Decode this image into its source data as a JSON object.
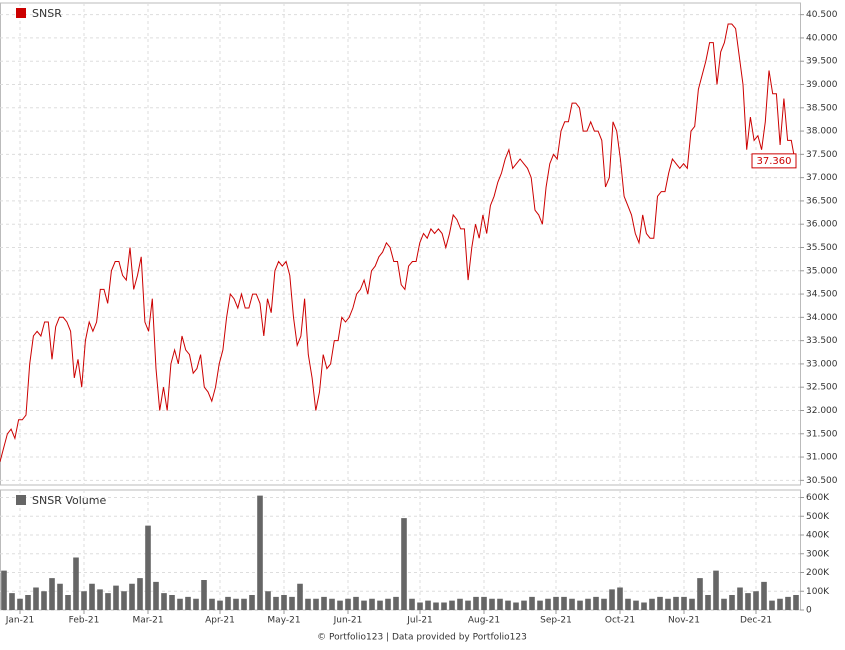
{
  "chart_data": [
    {
      "type": "line",
      "legend": "SNSR",
      "color": "#cc0000",
      "grid": true,
      "last_value_label": "37.360",
      "values": [
        30.9,
        31.2,
        31.5,
        31.6,
        31.4,
        31.8,
        31.8,
        31.9,
        33.0,
        33.6,
        33.7,
        33.6,
        33.9,
        33.9,
        33.1,
        33.8,
        34.0,
        34.0,
        33.9,
        33.7,
        32.7,
        33.1,
        32.5,
        33.5,
        33.9,
        33.7,
        33.9,
        34.6,
        34.6,
        34.3,
        35.0,
        35.2,
        35.2,
        34.9,
        34.8,
        35.5,
        34.6,
        34.9,
        35.3,
        33.9,
        33.7,
        34.4,
        32.9,
        32.0,
        32.5,
        32.0,
        33.0,
        33.3,
        33.0,
        33.6,
        33.3,
        33.2,
        32.8,
        32.9,
        33.2,
        32.5,
        32.4,
        32.2,
        32.5,
        33.0,
        33.3,
        34.0,
        34.5,
        34.4,
        34.2,
        34.5,
        34.2,
        34.2,
        34.5,
        34.5,
        34.3,
        33.6,
        34.4,
        34.1,
        35.0,
        35.2,
        35.1,
        35.2,
        34.9,
        34.0,
        33.4,
        33.6,
        34.4,
        33.2,
        32.7,
        32.0,
        32.4,
        33.2,
        32.9,
        33.0,
        33.5,
        33.5,
        34.0,
        33.9,
        34.0,
        34.2,
        34.5,
        34.6,
        34.8,
        34.5,
        35.0,
        35.1,
        35.3,
        35.4,
        35.6,
        35.5,
        35.2,
        35.2,
        34.7,
        34.6,
        35.1,
        35.2,
        35.2,
        35.6,
        35.8,
        35.7,
        35.9,
        35.8,
        35.9,
        35.8,
        35.5,
        35.8,
        36.2,
        36.1,
        35.9,
        35.9,
        34.8,
        35.5,
        36.0,
        35.7,
        36.2,
        35.8,
        36.4,
        36.6,
        36.9,
        37.1,
        37.4,
        37.6,
        37.2,
        37.3,
        37.4,
        37.3,
        37.2,
        37.0,
        36.3,
        36.2,
        36.0,
        36.8,
        37.3,
        37.5,
        37.4,
        38.0,
        38.2,
        38.2,
        38.6,
        38.6,
        38.5,
        38.0,
        38.0,
        38.2,
        38.0,
        38.0,
        37.8,
        36.8,
        37.0,
        38.2,
        38.0,
        37.4,
        36.6,
        36.4,
        36.2,
        35.8,
        35.6,
        36.2,
        35.8,
        35.7,
        35.7,
        36.6,
        36.7,
        36.7,
        37.1,
        37.4,
        37.3,
        37.2,
        37.3,
        37.2,
        38.0,
        38.1,
        38.9,
        39.2,
        39.5,
        39.9,
        39.9,
        39.0,
        39.7,
        39.9,
        40.3,
        40.3,
        40.2,
        39.6,
        39.0,
        37.6,
        38.3,
        37.8,
        37.9,
        37.6,
        38.2,
        39.3,
        38.8,
        38.8,
        37.7,
        38.7,
        37.8,
        37.8,
        37.36
      ],
      "ylim": [
        30.4,
        40.75
      ],
      "yticks": [
        {
          "value": 30.5,
          "label": "30.500"
        },
        {
          "value": 31,
          "label": "31.000"
        },
        {
          "value": 31.5,
          "label": "31.500"
        },
        {
          "value": 32,
          "label": "32.000"
        },
        {
          "value": 32.5,
          "label": "32.500"
        },
        {
          "value": 33,
          "label": "33.000"
        },
        {
          "value": 33.5,
          "label": "33.500"
        },
        {
          "value": 34,
          "label": "34.000"
        },
        {
          "value": 34.5,
          "label": "34.500"
        },
        {
          "value": 35,
          "label": "35.000"
        },
        {
          "value": 35.5,
          "label": "35.500"
        },
        {
          "value": 36,
          "label": "36.000"
        },
        {
          "value": 36.5,
          "label": "36.500"
        },
        {
          "value": 37,
          "label": "37.000"
        },
        {
          "value": 37.5,
          "label": "37.500"
        },
        {
          "value": 38,
          "label": "38.000"
        },
        {
          "value": 38.5,
          "label": "38.500"
        },
        {
          "value": 39,
          "label": "39.000"
        },
        {
          "value": 39.5,
          "label": "39.500"
        },
        {
          "value": 40,
          "label": "40.000"
        },
        {
          "value": 40.5,
          "label": "40.500"
        }
      ]
    },
    {
      "type": "bar",
      "legend": "SNSR Volume",
      "color": "#666666",
      "grid": true,
      "categories": [
        null,
        null,
        "Jan-21",
        null,
        null,
        null,
        null,
        null,
        null,
        null,
        "Feb-21",
        null,
        null,
        null,
        null,
        null,
        null,
        null,
        "Mar-21",
        null,
        null,
        null,
        null,
        null,
        null,
        null,
        null,
        "Apr-21",
        null,
        null,
        null,
        null,
        null,
        null,
        null,
        "May-21",
        null,
        null,
        null,
        null,
        null,
        null,
        null,
        "Jun-21",
        null,
        null,
        null,
        null,
        null,
        null,
        null,
        null,
        "Jul-21",
        null,
        null,
        null,
        null,
        null,
        null,
        null,
        "Aug-21",
        null,
        null,
        null,
        null,
        null,
        null,
        null,
        null,
        "Sep-21",
        null,
        null,
        null,
        null,
        null,
        null,
        null,
        "Oct-21",
        null,
        null,
        null,
        null,
        null,
        null,
        null,
        "Nov-21",
        null,
        null,
        null,
        null,
        null,
        null,
        null,
        null,
        "Dec-21",
        null,
        null,
        null,
        null,
        null
      ],
      "values": [
        210000,
        90000,
        60000,
        80000,
        120000,
        100000,
        170000,
        140000,
        80000,
        280000,
        100000,
        140000,
        110000,
        90000,
        130000,
        100000,
        140000,
        170000,
        450000,
        150000,
        90000,
        80000,
        60000,
        70000,
        60000,
        160000,
        60000,
        50000,
        70000,
        60000,
        60000,
        80000,
        610000,
        100000,
        70000,
        80000,
        70000,
        140000,
        60000,
        60000,
        70000,
        60000,
        50000,
        60000,
        70000,
        50000,
        60000,
        50000,
        60000,
        70000,
        490000,
        60000,
        40000,
        50000,
        40000,
        40000,
        50000,
        60000,
        50000,
        70000,
        70000,
        60000,
        60000,
        50000,
        40000,
        50000,
        70000,
        50000,
        60000,
        70000,
        70000,
        60000,
        50000,
        60000,
        70000,
        60000,
        110000,
        120000,
        60000,
        50000,
        40000,
        60000,
        70000,
        60000,
        70000,
        70000,
        60000,
        170000,
        80000,
        210000,
        60000,
        80000,
        120000,
        90000,
        100000,
        150000,
        50000,
        60000,
        70000,
        80000
      ],
      "ylim": [
        0,
        640000
      ],
      "yticks": [
        0,
        {
          "value": 100000,
          "label": "100K"
        },
        {
          "value": 200000,
          "label": "200K"
        },
        {
          "value": 300000,
          "label": "300K"
        },
        {
          "value": 400000,
          "label": "400K"
        },
        {
          "value": 500000,
          "label": "500K"
        },
        {
          "value": 600000,
          "label": "600K"
        }
      ]
    }
  ],
  "footer": "© Portfolio123 | Data provided by Portfolio123"
}
